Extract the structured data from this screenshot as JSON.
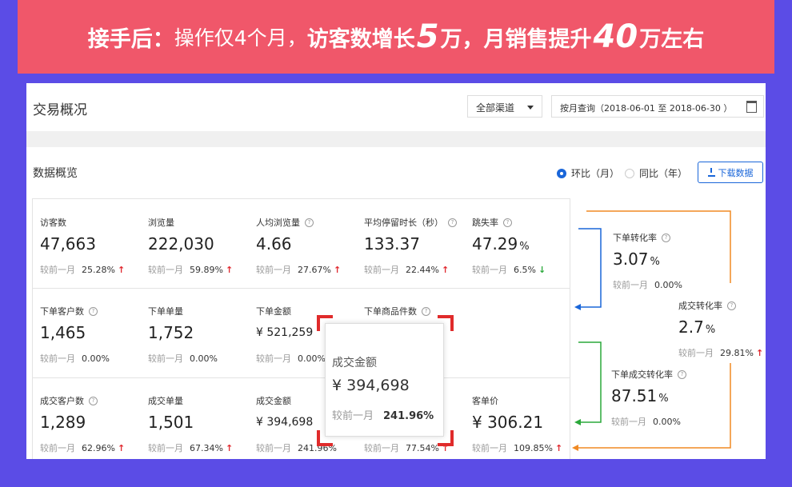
{
  "banner": {
    "part1": "接手后：",
    "part2": "操作仅4个月，",
    "part3": "访客数增长",
    "num1": "5",
    "part4": "万，月销售提升",
    "num2": "40",
    "part5": "万左右"
  },
  "header": {
    "title": "交易概况",
    "channel_select": "全部渠道",
    "date_range": "按月查询（2018-06-01 至 2018-06-30 ）"
  },
  "section": {
    "title": "数据概览",
    "radio_mom": "环比（月）",
    "radio_yoy": "同比（年）",
    "download_label": "下载数据"
  },
  "compare_label": "较前一月",
  "metrics": {
    "r1": [
      {
        "label": "访客数",
        "value": "47,663",
        "pct": "25.28%",
        "trend": "up"
      },
      {
        "label": "浏览量",
        "value": "222,030",
        "pct": "59.89%",
        "trend": "up"
      },
      {
        "label": "人均浏览量",
        "value": "4.66",
        "pct": "27.67%",
        "trend": "up"
      },
      {
        "label": "平均停留时长（秒）",
        "value": "133.37",
        "pct": "22.44%",
        "trend": "up"
      },
      {
        "label": "跳失率",
        "value": "47.29",
        "unit": "%",
        "pct": "6.5%",
        "trend": "down"
      }
    ],
    "r2": [
      {
        "label": "下单客户数",
        "value": "1,465",
        "pct": "0.00%"
      },
      {
        "label": "下单单量",
        "value": "1,752",
        "pct": "0.00%"
      },
      {
        "label": "下单金额",
        "value": "¥ 521,259",
        "pct": "0.00%"
      },
      {
        "label": "下单商品件数",
        "value": "",
        "pct": ""
      }
    ],
    "r3": [
      {
        "label": "成交客户数",
        "value": "1,289",
        "pct": "62.96%",
        "trend": "up"
      },
      {
        "label": "成交单量",
        "value": "1,501",
        "pct": "67.34%",
        "trend": "up"
      },
      {
        "label": "成交金额",
        "value": "¥ 394,698",
        "pct": "241.96%"
      },
      {
        "label": "",
        "value": "",
        "pct": "77.54%"
      },
      {
        "label": "客单价",
        "value": "¥ 306.21",
        "pct": "109.85%",
        "trend": "up"
      }
    ]
  },
  "conversion": [
    {
      "label": "下单转化率",
      "value": "3.07",
      "unit": "%",
      "pct": "0.00%"
    },
    {
      "label": "成交转化率",
      "value": "2.7",
      "unit": "%",
      "pct": "29.81%",
      "trend": "up"
    },
    {
      "label": "下单成交转化率",
      "value": "87.51",
      "unit": "%",
      "pct": "0.00%"
    }
  ],
  "popup": {
    "label": "成交金额",
    "value": "¥ 394,698",
    "compare": "较前一月",
    "pct": "241.96%"
  },
  "arrows": {
    "up": "↑",
    "down": "↓"
  },
  "qmark": "?",
  "colors": {
    "banner": "#f0576a",
    "background": "#5b4ce6",
    "accent": "#1a66d9",
    "up": "#e0282e",
    "down": "#2aa83a",
    "orange": "#f08a24",
    "green": "#2aa83a",
    "highlight": "#e02b2b"
  }
}
